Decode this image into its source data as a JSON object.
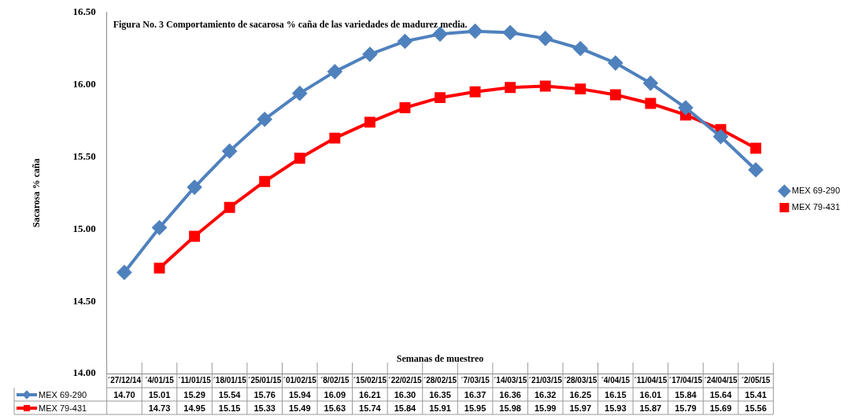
{
  "chart_data": {
    "type": "line",
    "title": "Figura No. 3 Comportamiento de sacarosa % caña de las variedades de madurez media.",
    "xlabel": "Semanas de muestreo",
    "ylabel": "Sacarosa % caña",
    "categories": [
      "´27/12/14",
      "´4/01/15",
      "´11/01/15",
      "´18/01/15",
      "´25/01/15",
      "´01/02/15",
      "´8/02/15",
      "´15/02/15",
      "´22/02/15",
      "´28/02/15",
      "´7/03/15",
      "´14/03/15",
      "´21/03/15",
      "´28/03/15",
      "´4/04/15",
      "´11/04/15",
      "´17/04/15",
      "´24/04/15",
      "´2/05/15"
    ],
    "series": [
      {
        "name": "MEX 69-290",
        "color": "#4f81bd",
        "marker": "diamond",
        "values": [
          14.7,
          15.01,
          15.29,
          15.54,
          15.76,
          15.94,
          16.09,
          16.21,
          16.3,
          16.35,
          16.37,
          16.36,
          16.32,
          16.25,
          16.15,
          16.01,
          15.84,
          15.64,
          15.41
        ],
        "value_labels": [
          "14.70",
          "15.01",
          "15.29",
          "15.54",
          "15.76",
          "15.94",
          "16.09",
          "16.21",
          "16.30",
          "16.35",
          "16.37",
          "16.36",
          "16.32",
          "16.25",
          "16.15",
          "16.01",
          "15.84",
          "15.64",
          "15.41"
        ]
      },
      {
        "name": "MEX 79-431",
        "color": "#ff0000",
        "marker": "square",
        "values": [
          null,
          14.73,
          14.95,
          15.15,
          15.33,
          15.49,
          15.63,
          15.74,
          15.84,
          15.91,
          15.95,
          15.98,
          15.99,
          15.97,
          15.93,
          15.87,
          15.79,
          15.69,
          15.56
        ],
        "value_labels": [
          null,
          "14.73",
          "14.95",
          "15.15",
          "15.33",
          "15.49",
          "15.63",
          "15.74",
          "15.84",
          "15.91",
          "15.95",
          "15.98",
          "15.99",
          "15.97",
          "15.93",
          "15.87",
          "15.79",
          "15.69",
          "15.56"
        ]
      }
    ],
    "ylim": [
      14,
      16.5
    ],
    "yticks": [
      {
        "value": 14,
        "label": "14.00"
      },
      {
        "value": 14.5,
        "label": "14.50"
      },
      {
        "value": 15,
        "label": "15.00"
      },
      {
        "value": 15.5,
        "label": "15.50"
      },
      {
        "value": 16,
        "label": "16.00"
      },
      {
        "value": 16.5,
        "label": "16.50"
      }
    ],
    "grid": false,
    "legend": "right"
  }
}
